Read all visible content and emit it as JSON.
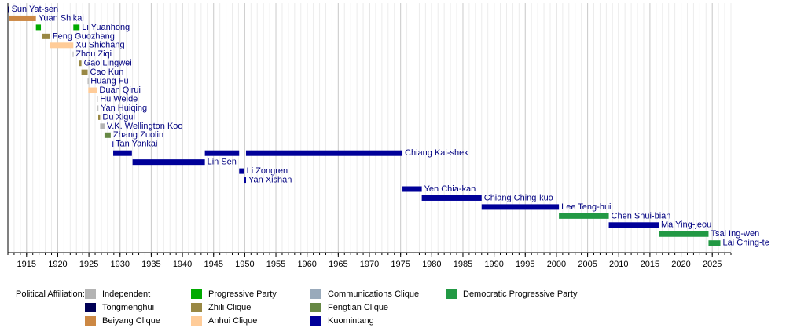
{
  "chart_data": {
    "type": "timeline",
    "xlim": [
      1912,
      2028
    ],
    "xticks": [
      1915,
      1920,
      1925,
      1930,
      1935,
      1940,
      1945,
      1950,
      1955,
      1960,
      1965,
      1970,
      1975,
      1980,
      1985,
      1990,
      1995,
      2000,
      2005,
      2010,
      2015,
      2020,
      2025
    ],
    "grid": true,
    "legend_title": "Political Affiliation:",
    "legend": [
      {
        "name": "Independent",
        "color": "#b3b3b3"
      },
      {
        "name": "Tongmenghui",
        "color": "#000055"
      },
      {
        "name": "Beiyang Clique",
        "color": "#cc8844"
      },
      {
        "name": "Progressive Party",
        "color": "#00aa00"
      },
      {
        "name": "Zhili Clique",
        "color": "#998844"
      },
      {
        "name": "Anhui Clique",
        "color": "#ffcc99"
      },
      {
        "name": "Communications Clique",
        "color": "#99aabb"
      },
      {
        "name": "Fengtian Clique",
        "color": "#668844"
      },
      {
        "name": "Kuomintang",
        "color": "#000099"
      },
      {
        "name": "Democratic Progressive Party",
        "color": "#229944"
      }
    ],
    "rows": [
      {
        "name": "Sun Yat-sen",
        "segments": [
          {
            "start": 1912.0,
            "end": 1912.2,
            "color": "#000055"
          }
        ]
      },
      {
        "name": "Yuan Shikai",
        "segments": [
          {
            "start": 1912.2,
            "end": 1916.5,
            "color": "#cc8844"
          }
        ]
      },
      {
        "name": "Li Yuanhong",
        "segments": [
          {
            "start": 1916.5,
            "end": 1917.3,
            "color": "#00aa00"
          },
          {
            "start": 1922.5,
            "end": 1923.5,
            "color": "#00aa00"
          }
        ]
      },
      {
        "name": "Feng Guozhang",
        "segments": [
          {
            "start": 1917.5,
            "end": 1918.8,
            "color": "#998844"
          }
        ]
      },
      {
        "name": "Xu Shichang",
        "segments": [
          {
            "start": 1918.8,
            "end": 1922.5,
            "color": "#ffcc99"
          }
        ]
      },
      {
        "name": "Zhou Ziqi",
        "segments": [
          {
            "start": 1922.4,
            "end": 1922.5,
            "color": "#b3b3b3"
          }
        ]
      },
      {
        "name": "Gao Lingwei",
        "segments": [
          {
            "start": 1923.4,
            "end": 1923.8,
            "color": "#998844"
          }
        ]
      },
      {
        "name": "Cao Kun",
        "segments": [
          {
            "start": 1923.8,
            "end": 1924.8,
            "color": "#998844"
          }
        ]
      },
      {
        "name": "Huang Fu",
        "segments": [
          {
            "start": 1924.8,
            "end": 1924.9,
            "color": "#b3b3b3"
          }
        ]
      },
      {
        "name": "Duan Qirui",
        "segments": [
          {
            "start": 1924.9,
            "end": 1926.3,
            "color": "#ffcc99"
          }
        ]
      },
      {
        "name": "Hu Weide",
        "segments": [
          {
            "start": 1926.3,
            "end": 1926.4,
            "color": "#b3b3b3"
          }
        ]
      },
      {
        "name": "Yan Huiqing",
        "segments": [
          {
            "start": 1926.4,
            "end": 1926.5,
            "color": "#b3b3b3"
          }
        ]
      },
      {
        "name": "Du Xigui",
        "segments": [
          {
            "start": 1926.5,
            "end": 1926.8,
            "color": "#998844"
          }
        ]
      },
      {
        "name": "V.K. Wellington Koo",
        "segments": [
          {
            "start": 1926.8,
            "end": 1927.5,
            "color": "#b3b3b3"
          }
        ]
      },
      {
        "name": "Zhang Zuolin",
        "segments": [
          {
            "start": 1927.5,
            "end": 1928.5,
            "color": "#668844"
          }
        ]
      },
      {
        "name": "Tan Yankai",
        "segments": [
          {
            "start": 1928.8,
            "end": 1928.9,
            "color": "#000099"
          }
        ]
      },
      {
        "name": "Chiang Kai-shek",
        "segments": [
          {
            "start": 1928.9,
            "end": 1931.9,
            "color": "#000099"
          },
          {
            "start": 1943.6,
            "end": 1949.1,
            "color": "#000099"
          },
          {
            "start": 1950.2,
            "end": 1975.3,
            "color": "#000099"
          }
        ]
      },
      {
        "name": "Lin Sen",
        "segments": [
          {
            "start": 1932.0,
            "end": 1943.6,
            "color": "#000099"
          }
        ]
      },
      {
        "name": "Li Zongren",
        "segments": [
          {
            "start": 1949.1,
            "end": 1949.9,
            "color": "#000099"
          }
        ]
      },
      {
        "name": "Yan Xishan",
        "segments": [
          {
            "start": 1949.9,
            "end": 1950.2,
            "color": "#000099"
          }
        ]
      },
      {
        "name": "Yen Chia-kan",
        "segments": [
          {
            "start": 1975.3,
            "end": 1978.4,
            "color": "#000099"
          }
        ]
      },
      {
        "name": "Chiang Ching-kuo",
        "segments": [
          {
            "start": 1978.4,
            "end": 1988.0,
            "color": "#000099"
          }
        ]
      },
      {
        "name": "Lee Teng-hui",
        "segments": [
          {
            "start": 1988.0,
            "end": 2000.4,
            "color": "#000099"
          }
        ]
      },
      {
        "name": "Chen Shui-bian",
        "segments": [
          {
            "start": 2000.4,
            "end": 2008.4,
            "color": "#229944"
          }
        ]
      },
      {
        "name": "Ma Ying-jeou",
        "segments": [
          {
            "start": 2008.4,
            "end": 2016.4,
            "color": "#000099"
          }
        ]
      },
      {
        "name": "Tsai Ing-wen",
        "segments": [
          {
            "start": 2016.4,
            "end": 2024.4,
            "color": "#229944"
          }
        ]
      },
      {
        "name": "Lai Ching-te",
        "segments": [
          {
            "start": 2024.4,
            "end": 2026.3,
            "color": "#229944"
          }
        ]
      }
    ]
  }
}
